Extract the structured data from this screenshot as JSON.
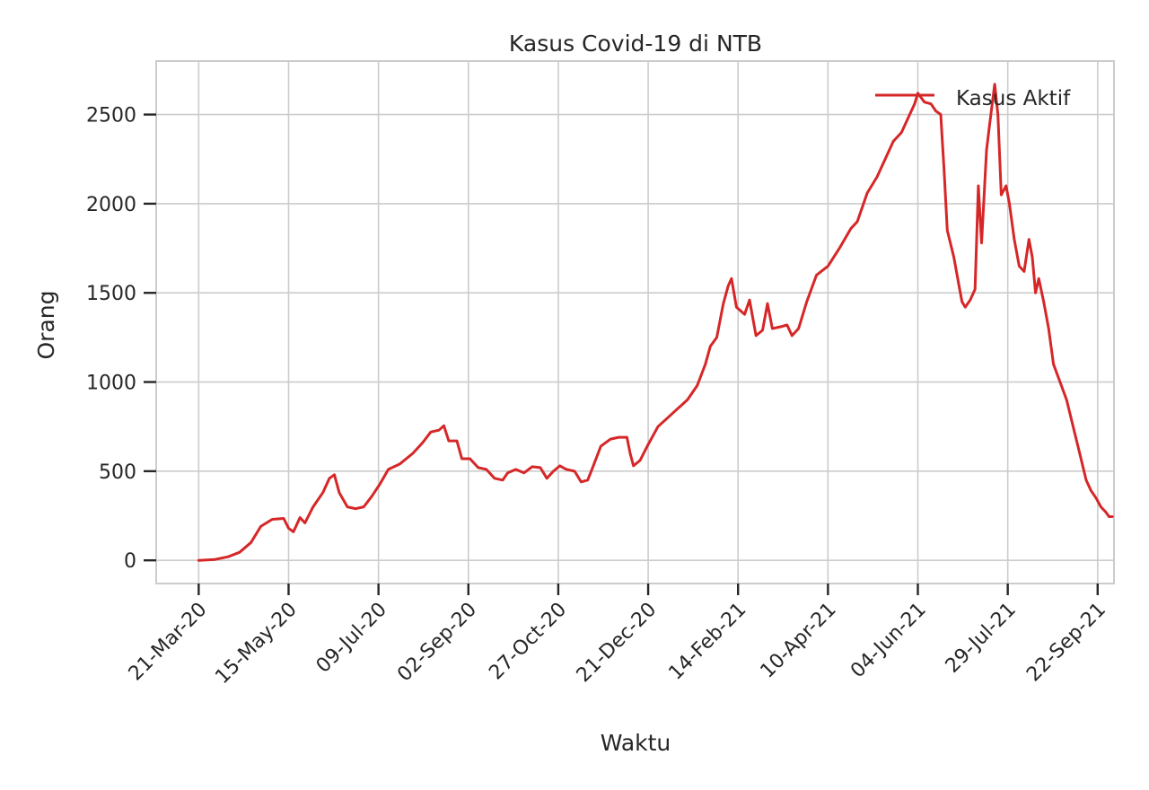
{
  "chart_data": {
    "type": "line",
    "title": "Kasus Covid-19 di NTB",
    "xlabel": "Waktu",
    "ylabel": "Orang",
    "x_ticks": [
      "21-Mar-20",
      "15-May-20",
      "09-Jul-20",
      "02-Sep-20",
      "27-Oct-20",
      "21-Dec-20",
      "14-Feb-21",
      "10-Apr-21",
      "04-Jun-21",
      "29-Jul-21",
      "22-Sep-21"
    ],
    "y_ticks": [
      "0",
      "500",
      "1000",
      "1500",
      "2000",
      "2500"
    ],
    "xlim": [
      "2020-02-24",
      "2021-10-02"
    ],
    "ylim": [
      -130,
      2800
    ],
    "grid": true,
    "legend": "top-right",
    "series": [
      {
        "name": "Kasus Aktif",
        "color": "#d62728",
        "points": [
          [
            "2020-03-21",
            0
          ],
          [
            "2020-03-31",
            5
          ],
          [
            "2020-04-08",
            20
          ],
          [
            "2020-04-15",
            45
          ],
          [
            "2020-04-22",
            100
          ],
          [
            "2020-04-28",
            190
          ],
          [
            "2020-05-05",
            230
          ],
          [
            "2020-05-12",
            235
          ],
          [
            "2020-05-15",
            180
          ],
          [
            "2020-05-18",
            160
          ],
          [
            "2020-05-22",
            240
          ],
          [
            "2020-05-25",
            210
          ],
          [
            "2020-05-30",
            300
          ],
          [
            "2020-06-05",
            380
          ],
          [
            "2020-06-09",
            460
          ],
          [
            "2020-06-12",
            480
          ],
          [
            "2020-06-15",
            380
          ],
          [
            "2020-06-20",
            300
          ],
          [
            "2020-06-25",
            290
          ],
          [
            "2020-06-30",
            300
          ],
          [
            "2020-07-05",
            360
          ],
          [
            "2020-07-10",
            430
          ],
          [
            "2020-07-15",
            510
          ],
          [
            "2020-07-22",
            540
          ],
          [
            "2020-07-30",
            600
          ],
          [
            "2020-08-05",
            660
          ],
          [
            "2020-08-10",
            720
          ],
          [
            "2020-08-15",
            730
          ],
          [
            "2020-08-18",
            755
          ],
          [
            "2020-08-21",
            670
          ],
          [
            "2020-08-26",
            670
          ],
          [
            "2020-08-29",
            570
          ],
          [
            "2020-09-03",
            570
          ],
          [
            "2020-09-08",
            520
          ],
          [
            "2020-09-13",
            510
          ],
          [
            "2020-09-18",
            460
          ],
          [
            "2020-09-23",
            450
          ],
          [
            "2020-09-26",
            490
          ],
          [
            "2020-10-01",
            510
          ],
          [
            "2020-10-06",
            490
          ],
          [
            "2020-10-11",
            525
          ],
          [
            "2020-10-16",
            520
          ],
          [
            "2020-10-20",
            460
          ],
          [
            "2020-10-24",
            500
          ],
          [
            "2020-10-28",
            530
          ],
          [
            "2020-11-01",
            510
          ],
          [
            "2020-11-06",
            500
          ],
          [
            "2020-11-10",
            440
          ],
          [
            "2020-11-14",
            450
          ],
          [
            "2020-11-17",
            520
          ],
          [
            "2020-11-22",
            640
          ],
          [
            "2020-11-28",
            680
          ],
          [
            "2020-12-03",
            690
          ],
          [
            "2020-12-08",
            690
          ],
          [
            "2020-12-10",
            600
          ],
          [
            "2020-12-12",
            530
          ],
          [
            "2020-12-16",
            560
          ],
          [
            "2020-12-21",
            650
          ],
          [
            "2020-12-27",
            750
          ],
          [
            "2021-01-02",
            800
          ],
          [
            "2021-01-08",
            850
          ],
          [
            "2021-01-14",
            900
          ],
          [
            "2021-01-20",
            980
          ],
          [
            "2021-01-25",
            1100
          ],
          [
            "2021-01-28",
            1200
          ],
          [
            "2021-02-01",
            1250
          ],
          [
            "2021-02-05",
            1440
          ],
          [
            "2021-02-08",
            1540
          ],
          [
            "2021-02-10",
            1580
          ],
          [
            "2021-02-13",
            1420
          ],
          [
            "2021-02-18",
            1380
          ],
          [
            "2021-02-21",
            1460
          ],
          [
            "2021-02-25",
            1260
          ],
          [
            "2021-03-01",
            1290
          ],
          [
            "2021-03-04",
            1440
          ],
          [
            "2021-03-07",
            1300
          ],
          [
            "2021-03-12",
            1310
          ],
          [
            "2021-03-16",
            1320
          ],
          [
            "2021-03-19",
            1260
          ],
          [
            "2021-03-23",
            1300
          ],
          [
            "2021-03-28",
            1450
          ],
          [
            "2021-04-03",
            1600
          ],
          [
            "2021-04-10",
            1650
          ],
          [
            "2021-04-17",
            1750
          ],
          [
            "2021-04-24",
            1860
          ],
          [
            "2021-04-28",
            1900
          ],
          [
            "2021-05-04",
            2060
          ],
          [
            "2021-05-10",
            2150
          ],
          [
            "2021-05-15",
            2250
          ],
          [
            "2021-05-20",
            2350
          ],
          [
            "2021-05-25",
            2400
          ],
          [
            "2021-05-30",
            2500
          ],
          [
            "2021-06-02",
            2560
          ],
          [
            "2021-06-04",
            2620
          ],
          [
            "2021-06-08",
            2570
          ],
          [
            "2021-06-12",
            2560
          ],
          [
            "2021-06-15",
            2520
          ],
          [
            "2021-06-18",
            2500
          ],
          [
            "2021-06-20",
            2200
          ],
          [
            "2021-06-22",
            1850
          ],
          [
            "2021-06-26",
            1700
          ],
          [
            "2021-06-29",
            1550
          ],
          [
            "2021-07-01",
            1450
          ],
          [
            "2021-07-03",
            1420
          ],
          [
            "2021-07-06",
            1460
          ],
          [
            "2021-07-09",
            1520
          ],
          [
            "2021-07-11",
            2100
          ],
          [
            "2021-07-13",
            1780
          ],
          [
            "2021-07-16",
            2300
          ],
          [
            "2021-07-18",
            2450
          ],
          [
            "2021-07-21",
            2670
          ],
          [
            "2021-07-23",
            2500
          ],
          [
            "2021-07-25",
            2050
          ],
          [
            "2021-07-28",
            2100
          ],
          [
            "2021-07-30",
            2000
          ],
          [
            "2021-08-02",
            1800
          ],
          [
            "2021-08-05",
            1650
          ],
          [
            "2021-08-08",
            1620
          ],
          [
            "2021-08-11",
            1800
          ],
          [
            "2021-08-13",
            1700
          ],
          [
            "2021-08-15",
            1500
          ],
          [
            "2021-08-17",
            1580
          ],
          [
            "2021-08-20",
            1450
          ],
          [
            "2021-08-23",
            1300
          ],
          [
            "2021-08-26",
            1100
          ],
          [
            "2021-08-30",
            1000
          ],
          [
            "2021-09-03",
            900
          ],
          [
            "2021-09-07",
            750
          ],
          [
            "2021-09-11",
            600
          ],
          [
            "2021-09-15",
            450
          ],
          [
            "2021-09-18",
            390
          ],
          [
            "2021-09-21",
            350
          ],
          [
            "2021-09-24",
            300
          ],
          [
            "2021-09-27",
            270
          ],
          [
            "2021-09-29",
            245
          ],
          [
            "2021-10-01",
            245
          ]
        ]
      }
    ]
  }
}
